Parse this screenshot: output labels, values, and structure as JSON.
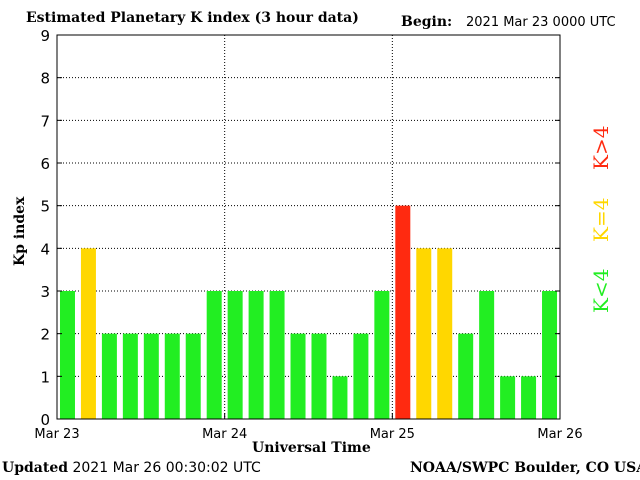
{
  "header": {
    "title": "Estimated Planetary K index (3 hour data)",
    "begin_label": "Begin:",
    "begin_value": "2021 Mar 23 0000 UTC"
  },
  "footer": {
    "updated_label": "Updated",
    "updated_value": "2021 Mar 26 00:30:02 UTC",
    "source": "NOAA/SWPC Boulder, CO USA"
  },
  "legend": {
    "low": "K<4",
    "mid": "K=4",
    "high": "K>4"
  },
  "colors": {
    "low": "#22ee22",
    "mid": "#ffd700",
    "high": "#ff2a10"
  },
  "chart_data": {
    "type": "bar",
    "xlabel": "Universal Time",
    "ylabel": "Kp index",
    "ylim": [
      0,
      9
    ],
    "yticks": [
      "0",
      "1",
      "2",
      "3",
      "4",
      "5",
      "6",
      "7",
      "8",
      "9"
    ],
    "xticks": [
      "Mar 23",
      "Mar 24",
      "Mar 25",
      "Mar 26"
    ],
    "grid": true,
    "values": [
      3,
      4,
      2,
      2,
      2,
      2,
      2,
      3,
      3,
      3,
      3,
      2,
      2,
      1,
      2,
      3,
      5,
      4,
      4,
      2,
      3,
      1,
      1,
      3
    ]
  }
}
